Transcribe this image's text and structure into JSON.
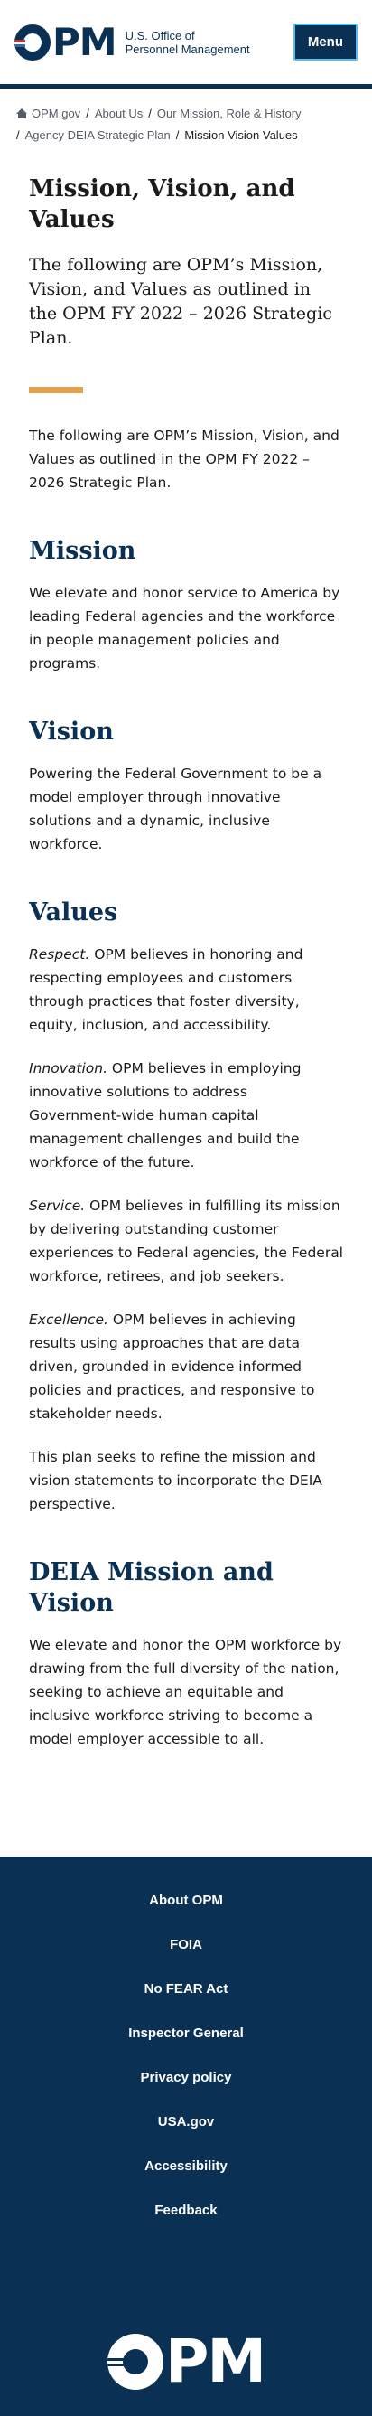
{
  "header": {
    "logo_mark": "PM",
    "logo_line1": "U.S. Office of",
    "logo_line2": "Personnel Management",
    "menu_label": "Menu"
  },
  "breadcrumb": [
    {
      "label": "OPM.gov"
    },
    {
      "label": "About Us"
    },
    {
      "label": "Our Mission, Role & History"
    },
    {
      "label": "Agency DEIA Strategic Plan"
    },
    {
      "label": "Mission Vision Values"
    }
  ],
  "main": {
    "title": "Mission, Vision, and Values",
    "intro": "The following are OPM’s Mission, Vision, and Values as outlined in the OPM FY 2022 – 2026 Strategic Plan.",
    "intro_body": "The following are OPM’s Mission, Vision, and Values as outlined in the OPM FY 2022 – 2026 Strategic Plan.",
    "mission_heading": "Mission",
    "mission_text": "We elevate and honor service to America by leading Federal agencies and the workforce in people management policies and programs.",
    "vision_heading": "Vision",
    "vision_text": "Powering the Federal Government to be a model employer through innovative solutions and a dynamic, inclusive workforce.",
    "values_heading": "Values",
    "values": [
      {
        "term": "Respect.",
        "text": " OPM believes in honoring and respecting employees and customers through practices that foster diversity, equity, inclusion, and accessibility."
      },
      {
        "term": "Innovation.",
        "text": " OPM believes in employing innovative solutions to address Government-wide human capital management challenges and build the workforce of the future."
      },
      {
        "term": "Service.",
        "text": " OPM believes in fulfilling its mission by delivering outstanding customer experiences to Federal agencies, the Federal workforce, retirees, and job seekers."
      },
      {
        "term": "Excellence.",
        "text": " OPM believes in achieving results using approaches that are data driven, grounded in evidence informed policies and practices, and responsive to stakeholder needs."
      }
    ],
    "plan_text": "This plan seeks to refine the mission and vision statements to incorporate the DEIA perspective.",
    "deia_heading": "DEIA Mission and Vision",
    "deia_text": "We elevate and honor the OPM workforce by drawing from the full diversity of the nation, seeking to achieve an equitable and inclusive workforce striving to become a model employer accessible to all."
  },
  "footer": {
    "links": [
      "About OPM",
      "FOIA",
      "No FEAR Act",
      "Inspector General",
      "Privacy policy",
      "USA.gov",
      "Accessibility",
      "Feedback"
    ],
    "logo_mark": "PM"
  },
  "colors": {
    "navy": "#0a3054",
    "accent": "#e8a04c",
    "menu_border": "#4fc3f7"
  }
}
